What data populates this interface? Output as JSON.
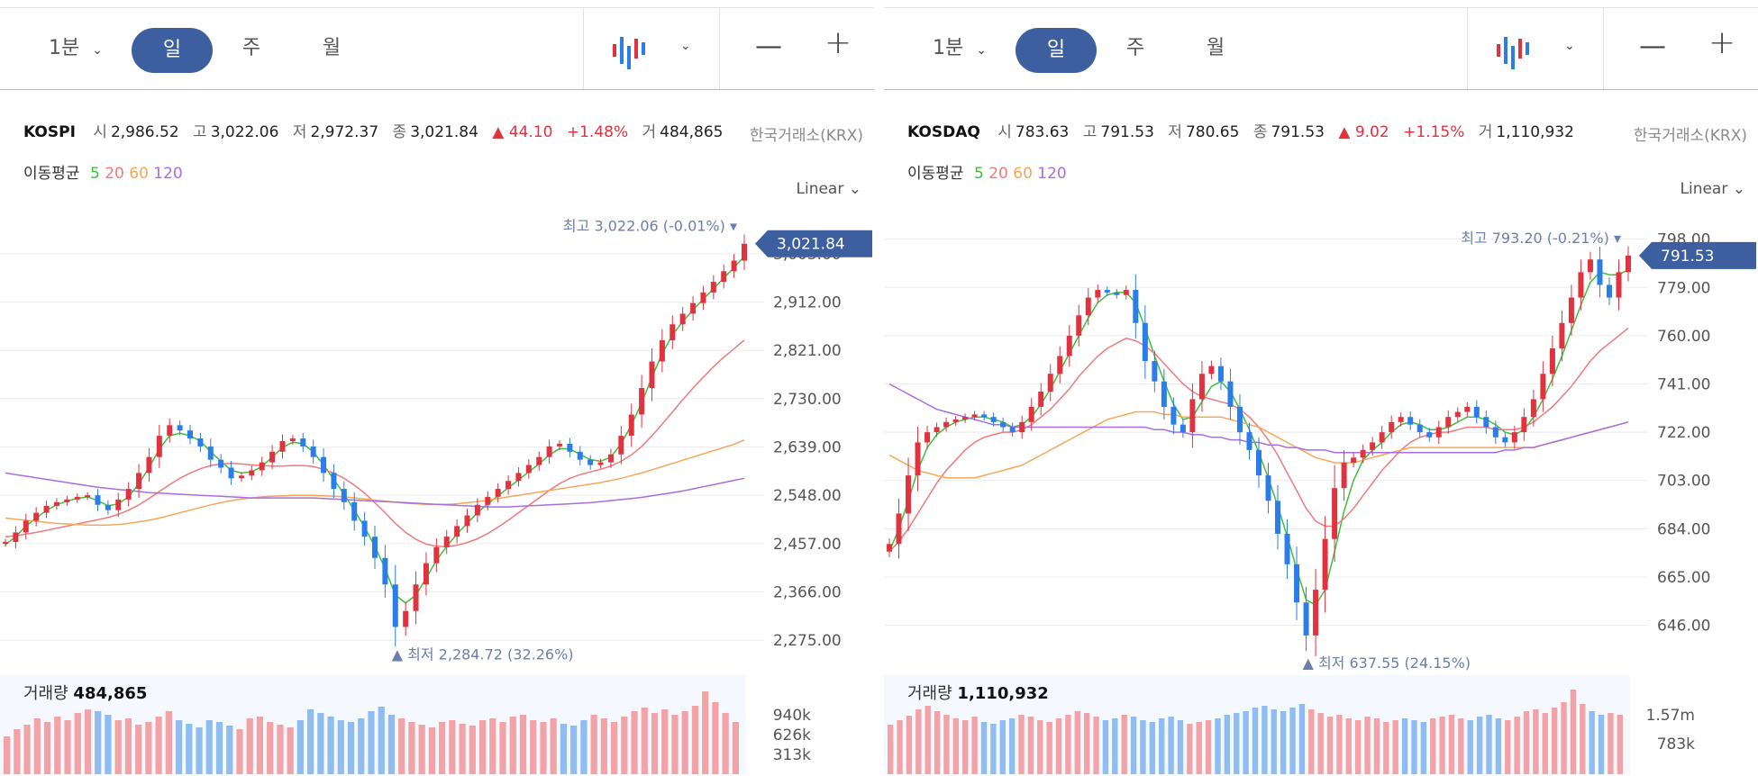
{
  "colors": {
    "up": "#e0333f",
    "down": "#2b7de9",
    "ma5": "#3ec03e",
    "ma20": "#f07a7a",
    "ma60": "#f5a85a",
    "ma120": "#a86ee0",
    "accent": "#3d5fa0",
    "marker_text": "#6b7fae"
  },
  "toolbar": {
    "interval_label": "1분",
    "day_label": "일",
    "week_label": "주",
    "month_label": "월",
    "zoom_out": "—",
    "zoom_in": "+"
  },
  "panels": [
    {
      "index": "KOSPI",
      "open_label": "시",
      "open": "2,986.52",
      "high_label": "고",
      "high": "3,022.06",
      "low_label": "저",
      "low": "2,972.37",
      "close_label": "종",
      "close": "3,021.84",
      "change": "▲ 44.10",
      "change_pct": "+1.48%",
      "volume_label": "거",
      "volume": "484,865",
      "exchange": "한국거래소(KRX)",
      "ma_label": "이동평균",
      "ma_periods": [
        "5",
        "20",
        "60",
        "120"
      ],
      "scale": "Linear",
      "price_tag": "3,021.84",
      "high_marker_prefix": "최고",
      "high_marker": "3,022.06 (-0.01%)",
      "low_marker_prefix": "▲ 최저",
      "low_marker": "2,284.72 (32.26%)",
      "volume_title": "거래량",
      "volume_value": "484,865",
      "volume_ticks": [
        "940k",
        "626k",
        "313k"
      ]
    },
    {
      "index": "KOSDAQ",
      "open_label": "시",
      "open": "783.63",
      "high_label": "고",
      "high": "791.53",
      "low_label": "저",
      "low": "780.65",
      "close_label": "종",
      "close": "791.53",
      "change": "▲ 9.02",
      "change_pct": "+1.15%",
      "volume_label": "거",
      "volume": "1,110,932",
      "exchange": "한국거래소(KRX)",
      "ma_label": "이동평균",
      "ma_periods": [
        "5",
        "20",
        "60",
        "120"
      ],
      "scale": "Linear",
      "price_tag": "791.53",
      "high_marker_prefix": "최고",
      "high_marker": "793.20 (-0.21%)",
      "low_marker_prefix": "▲ 최저",
      "low_marker": "637.55 (24.15%)",
      "volume_title": "거래량",
      "volume_value": "1,110,932",
      "volume_ticks": [
        "1.57m",
        "783k"
      ]
    }
  ],
  "chart_data": [
    {
      "type": "line",
      "title": "KOSPI",
      "y_ticks": [
        "3,003.00",
        "2,912.00",
        "2,821.00",
        "2,730.00",
        "2,639.00",
        "2,548.00",
        "2,457.00",
        "2,366.00",
        "2,275.00"
      ],
      "ylim": [
        2260,
        3040
      ],
      "grid": true,
      "series": [
        {
          "name": "KOSPI",
          "values": [
            2460,
            2478,
            2500,
            2515,
            2528,
            2535,
            2540,
            2545,
            2548,
            2530,
            2520,
            2540,
            2560,
            2590,
            2620,
            2660,
            2680,
            2670,
            2655,
            2640,
            2615,
            2600,
            2580,
            2585,
            2595,
            2610,
            2630,
            2650,
            2655,
            2640,
            2620,
            2590,
            2560,
            2535,
            2500,
            2470,
            2430,
            2380,
            2300,
            2330,
            2380,
            2420,
            2450,
            2470,
            2490,
            2510,
            2530,
            2545,
            2560,
            2575,
            2590,
            2605,
            2620,
            2640,
            2645,
            2630,
            2615,
            2605,
            2610,
            2625,
            2660,
            2700,
            2750,
            2800,
            2840,
            2870,
            2890,
            2910,
            2930,
            2950,
            2970,
            2990,
            3021.84
          ]
        },
        {
          "name": "5",
          "values": [
            2455,
            2470,
            2490,
            2505,
            2520,
            2530,
            2537,
            2542,
            2545,
            2538,
            2528,
            2532,
            2545,
            2570,
            2600,
            2635,
            2660,
            2665,
            2660,
            2650,
            2630,
            2612,
            2595,
            2590,
            2592,
            2602,
            2620,
            2638,
            2648,
            2645,
            2630,
            2605,
            2578,
            2550,
            2520,
            2488,
            2452,
            2410,
            2360,
            2345,
            2360,
            2392,
            2425,
            2452,
            2475,
            2495,
            2515,
            2532,
            2547,
            2562,
            2577,
            2592,
            2607,
            2624,
            2636,
            2635,
            2625,
            2615,
            2612,
            2620,
            2645,
            2680,
            2722,
            2770,
            2815,
            2850,
            2875,
            2897,
            2917,
            2937,
            2957,
            2977,
            2998
          ]
        },
        {
          "name": "20",
          "values": [
            2470,
            2472,
            2475,
            2478,
            2482,
            2486,
            2490,
            2494,
            2498,
            2502,
            2506,
            2512,
            2520,
            2530,
            2542,
            2555,
            2568,
            2580,
            2590,
            2598,
            2604,
            2607,
            2608,
            2607,
            2605,
            2604,
            2603,
            2603,
            2604,
            2604,
            2602,
            2597,
            2590,
            2580,
            2567,
            2552,
            2534,
            2515,
            2495,
            2478,
            2465,
            2456,
            2452,
            2451,
            2454,
            2459,
            2466,
            2476,
            2488,
            2501,
            2515,
            2529,
            2543,
            2557,
            2570,
            2580,
            2587,
            2592,
            2597,
            2603,
            2612,
            2624,
            2640,
            2660,
            2682,
            2705,
            2728,
            2750,
            2770,
            2790,
            2808,
            2824,
            2840
          ]
        },
        {
          "name": "60",
          "values": [
            2505,
            2503,
            2501,
            2499,
            2497,
            2495,
            2494,
            2493,
            2492,
            2492,
            2492,
            2493,
            2495,
            2498,
            2501,
            2505,
            2510,
            2515,
            2520,
            2525,
            2530,
            2534,
            2538,
            2541,
            2543,
            2545,
            2546,
            2547,
            2548,
            2548,
            2548,
            2547,
            2546,
            2545,
            2543,
            2541,
            2539,
            2537,
            2535,
            2533,
            2532,
            2531,
            2531,
            2531,
            2532,
            2534,
            2536,
            2539,
            2542,
            2545,
            2548,
            2551,
            2554,
            2557,
            2560,
            2563,
            2566,
            2569,
            2572,
            2576,
            2580,
            2585,
            2590,
            2596,
            2602,
            2608,
            2614,
            2620,
            2626,
            2632,
            2638,
            2644,
            2652
          ]
        },
        {
          "name": "120",
          "values": [
            2590,
            2587,
            2584,
            2581,
            2578,
            2575,
            2572,
            2569,
            2566,
            2563,
            2561,
            2559,
            2557,
            2555,
            2553,
            2552,
            2551,
            2550,
            2549,
            2548,
            2547,
            2546,
            2545,
            2544,
            2543,
            2543,
            2543,
            2543,
            2543,
            2543,
            2543,
            2542,
            2541,
            2540,
            2539,
            2538,
            2537,
            2536,
            2535,
            2534,
            2533,
            2532,
            2531,
            2530,
            2529,
            2528,
            2527,
            2526,
            2526,
            2526,
            2527,
            2528,
            2529,
            2530,
            2531,
            2532,
            2533,
            2534,
            2536,
            2538,
            2540,
            2542,
            2544,
            2547,
            2550,
            2553,
            2556,
            2560,
            2564,
            2568,
            2572,
            2576,
            2580
          ]
        }
      ],
      "volume": [
        0.42,
        0.5,
        0.55,
        0.62,
        0.58,
        0.64,
        0.6,
        0.68,
        0.72,
        0.7,
        0.66,
        0.6,
        0.62,
        0.55,
        0.58,
        0.64,
        0.7,
        0.6,
        0.56,
        0.52,
        0.6,
        0.58,
        0.54,
        0.5,
        0.62,
        0.64,
        0.58,
        0.55,
        0.52,
        0.6,
        0.72,
        0.68,
        0.64,
        0.6,
        0.58,
        0.62,
        0.7,
        0.75,
        0.66,
        0.62,
        0.58,
        0.55,
        0.52,
        0.58,
        0.6,
        0.56,
        0.54,
        0.6,
        0.62,
        0.58,
        0.64,
        0.66,
        0.6,
        0.58,
        0.62,
        0.56,
        0.54,
        0.6,
        0.66,
        0.62,
        0.58,
        0.64,
        0.7,
        0.74,
        0.68,
        0.72,
        0.66,
        0.7,
        0.76,
        0.92,
        0.8,
        0.68,
        0.58
      ]
    },
    {
      "type": "line",
      "title": "KOSDAQ",
      "y_ticks": [
        "798.00",
        "779.00",
        "760.00",
        "741.00",
        "722.00",
        "703.00",
        "684.00",
        "665.00",
        "646.00"
      ],
      "ylim": [
        637,
        800
      ],
      "grid": true,
      "series": [
        {
          "name": "KOSDAQ",
          "values": [
            678,
            690,
            705,
            718,
            722,
            724,
            726,
            727,
            728,
            729,
            728,
            726,
            724,
            722,
            726,
            732,
            738,
            745,
            752,
            760,
            768,
            775,
            778,
            777,
            776,
            778,
            765,
            750,
            742,
            732,
            725,
            722,
            735,
            745,
            748,
            742,
            732,
            722,
            715,
            705,
            695,
            682,
            670,
            655,
            642,
            660,
            680,
            700,
            710,
            712,
            715,
            718,
            722,
            726,
            728,
            725,
            722,
            720,
            724,
            728,
            730,
            732,
            728,
            724,
            720,
            718,
            722,
            728,
            735,
            745,
            755,
            765,
            775,
            785,
            790,
            780,
            775,
            785,
            791.53
          ]
        },
        {
          "name": "5",
          "values": [
            675,
            684,
            695,
            707,
            716,
            721,
            724,
            726,
            727,
            728,
            728,
            727,
            726,
            724,
            725,
            728,
            733,
            739,
            746,
            753,
            760,
            767,
            773,
            776,
            777,
            777,
            773,
            763,
            752,
            742,
            733,
            727,
            728,
            734,
            740,
            742,
            738,
            731,
            723,
            714,
            704,
            693,
            681,
            668,
            656,
            654,
            660,
            675,
            691,
            703,
            711,
            715,
            718,
            722,
            725,
            726,
            725,
            723,
            723,
            724,
            726,
            728,
            728,
            727,
            725,
            722,
            721,
            723,
            728,
            735,
            743,
            752,
            762,
            772,
            781,
            785,
            784,
            784,
            786
          ]
        },
        {
          "name": "20",
          "values": [
            675,
            679,
            684,
            690,
            696,
            702,
            707,
            711,
            715,
            718,
            720,
            721,
            722,
            722,
            723,
            725,
            728,
            731,
            735,
            739,
            744,
            748,
            752,
            755,
            757,
            759,
            758,
            756,
            753,
            749,
            745,
            741,
            738,
            736,
            735,
            734,
            733,
            731,
            728,
            724,
            719,
            713,
            706,
            699,
            692,
            687,
            685,
            685,
            688,
            692,
            697,
            702,
            707,
            711,
            715,
            718,
            720,
            721,
            722,
            722,
            723,
            724,
            724,
            724,
            723,
            723,
            723,
            724,
            726,
            729,
            732,
            736,
            740,
            745,
            750,
            754,
            757,
            760,
            763
          ]
        },
        {
          "name": "60",
          "values": [
            713,
            711,
            709,
            707,
            706,
            705,
            704,
            704,
            704,
            704,
            705,
            706,
            707,
            708,
            709,
            711,
            713,
            715,
            717,
            719,
            721,
            723,
            725,
            727,
            728,
            729,
            730,
            730,
            730,
            729,
            729,
            728,
            728,
            728,
            728,
            728,
            727,
            726,
            725,
            724,
            722,
            720,
            718,
            716,
            714,
            712,
            711,
            710,
            710,
            710,
            711,
            712,
            713,
            714,
            715,
            716,
            716,
            716,
            716,
            716,
            716,
            716,
            716,
            716,
            716,
            716,
            716,
            716,
            716,
            717,
            718,
            719,
            720,
            721,
            722,
            723,
            724,
            725,
            726
          ]
        },
        {
          "name": "120",
          "values": [
            741,
            739,
            737,
            735,
            733,
            731,
            730,
            729,
            728,
            727,
            726,
            725,
            725,
            724,
            724,
            724,
            724,
            724,
            724,
            724,
            724,
            724,
            724,
            724,
            724,
            724,
            724,
            724,
            723,
            723,
            722,
            722,
            721,
            721,
            720,
            720,
            719,
            719,
            718,
            718,
            717,
            717,
            716,
            716,
            715,
            715,
            715,
            714,
            714,
            714,
            714,
            714,
            714,
            714,
            714,
            714,
            714,
            714,
            714,
            714,
            714,
            714,
            714,
            714,
            714,
            715,
            715,
            716,
            716,
            717,
            718,
            719,
            720,
            721,
            722,
            723,
            724,
            725,
            726
          ]
        }
      ],
      "volume": [
        0.55,
        0.6,
        0.65,
        0.72,
        0.76,
        0.7,
        0.66,
        0.62,
        0.6,
        0.64,
        0.58,
        0.56,
        0.6,
        0.62,
        0.66,
        0.64,
        0.6,
        0.58,
        0.62,
        0.66,
        0.7,
        0.68,
        0.64,
        0.6,
        0.62,
        0.66,
        0.64,
        0.6,
        0.58,
        0.62,
        0.64,
        0.6,
        0.56,
        0.58,
        0.6,
        0.62,
        0.66,
        0.68,
        0.7,
        0.74,
        0.76,
        0.72,
        0.7,
        0.74,
        0.78,
        0.72,
        0.68,
        0.64,
        0.66,
        0.62,
        0.6,
        0.64,
        0.62,
        0.58,
        0.6,
        0.62,
        0.6,
        0.58,
        0.62,
        0.64,
        0.66,
        0.62,
        0.6,
        0.64,
        0.66,
        0.62,
        0.6,
        0.64,
        0.7,
        0.72,
        0.68,
        0.74,
        0.8,
        0.94,
        0.78,
        0.7,
        0.66,
        0.68,
        0.66
      ]
    }
  ]
}
